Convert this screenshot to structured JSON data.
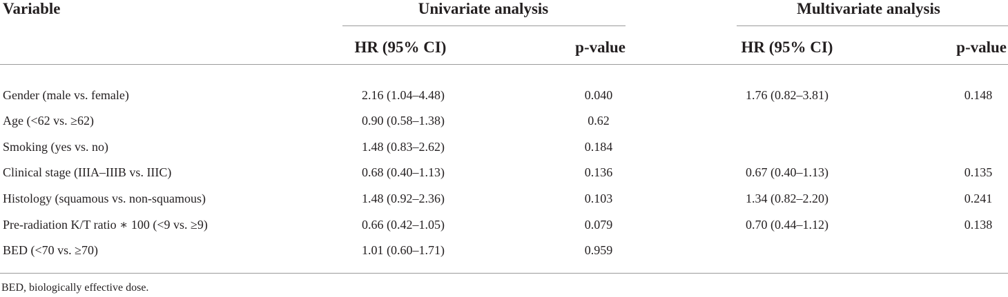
{
  "table": {
    "header": {
      "variable": "Variable",
      "univariate": "Univariate analysis",
      "multivariate": "Multivariate analysis",
      "uni_hr": "HR (95% CI)",
      "uni_p": "p-value",
      "multi_hr": "HR (95% CI)",
      "multi_p": "p-value"
    },
    "rows": [
      {
        "variable": "Gender (male vs. female)",
        "uni_hr": "2.16 (1.04–4.48)",
        "uni_p": "0.040",
        "multi_hr": "1.76 (0.82–3.81)",
        "multi_p": "0.148"
      },
      {
        "variable": "Age (<62 vs. ≥62)",
        "uni_hr": "0.90 (0.58–1.38)",
        "uni_p": "0.62",
        "multi_hr": "",
        "multi_p": ""
      },
      {
        "variable": "Smoking (yes vs. no)",
        "uni_hr": "1.48 (0.83–2.62)",
        "uni_p": "0.184",
        "multi_hr": "",
        "multi_p": ""
      },
      {
        "variable": "Clinical stage (IIIA–IIIB vs. IIIC)",
        "uni_hr": "0.68 (0.40–1.13)",
        "uni_p": "0.136",
        "multi_hr": "0.67 (0.40–1.13)",
        "multi_p": "0.135"
      },
      {
        "variable": "Histology (squamous vs. non-squamous)",
        "uni_hr": "1.48 (0.92–2.36)",
        "uni_p": "0.103",
        "multi_hr": "1.34 (0.82–2.20)",
        "multi_p": "0.241"
      },
      {
        "variable": "Pre-radiation K/T ratio ∗ 100 (<9 vs. ≥9)",
        "uni_hr": "0.66 (0.42–1.05)",
        "uni_p": "0.079",
        "multi_hr": "0.70 (0.44–1.12)",
        "multi_p": "0.138"
      },
      {
        "variable": "BED (<70 vs. ≥70)",
        "uni_hr": "1.01 (0.60–1.71)",
        "uni_p": "0.959",
        "multi_hr": "",
        "multi_p": ""
      }
    ],
    "footnote": "BED, biologically effective dose."
  }
}
